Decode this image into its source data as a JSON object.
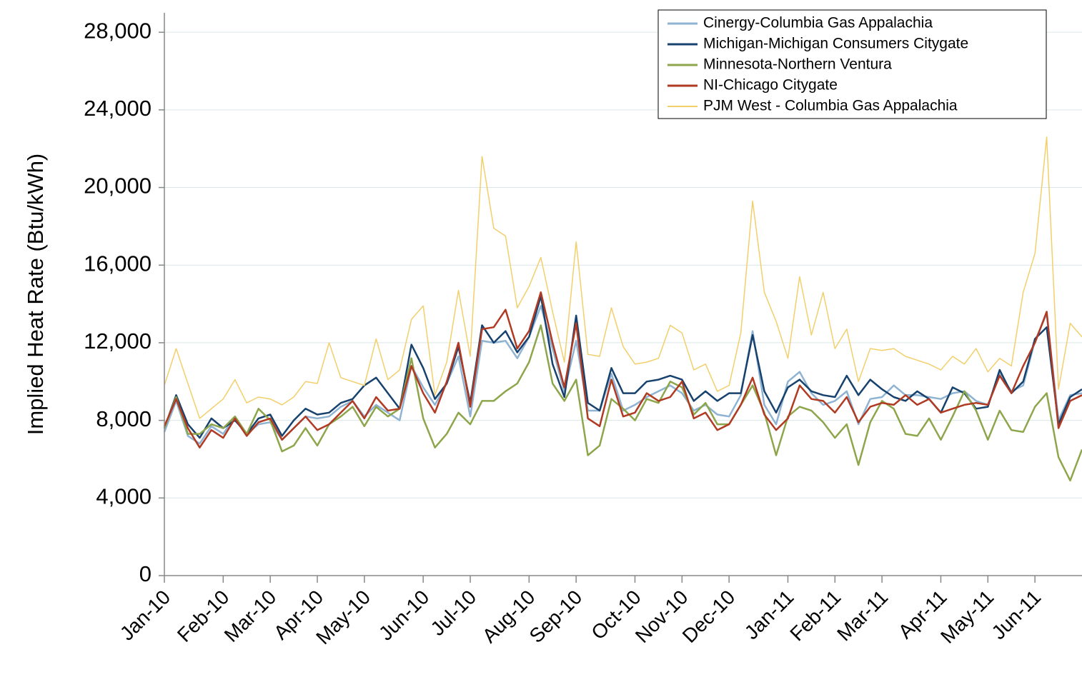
{
  "chart_data": {
    "type": "line",
    "y_label": "Implied Heat Rate (Btu/kWh)",
    "categories": [
      "Jan-10",
      null,
      null,
      null,
      null,
      "Feb-10",
      null,
      null,
      null,
      "Mar-10",
      null,
      null,
      null,
      "Apr-10",
      null,
      null,
      null,
      "May-10",
      null,
      null,
      null,
      null,
      "Jun-10",
      null,
      null,
      null,
      "Jul-10",
      null,
      null,
      null,
      null,
      "Aug-10",
      null,
      null,
      null,
      "Sep-10",
      null,
      null,
      null,
      null,
      "Oct-10",
      null,
      null,
      null,
      "Nov-10",
      null,
      null,
      null,
      "Dec-10",
      null,
      null,
      null,
      null,
      "Jan-11",
      null,
      null,
      null,
      "Feb-11",
      null,
      null,
      null,
      "Mar-11",
      null,
      null,
      null,
      null,
      "Apr-11",
      null,
      null,
      null,
      "May-11",
      null,
      null,
      null,
      "Jun-11",
      null,
      null,
      null,
      null
    ],
    "series": [
      {
        "name": "Cinergy-Columbia Gas Appalachia",
        "color": "#8fb3d3",
        "width": 2.5,
        "values": [
          7400,
          9000,
          7200,
          6800,
          7700,
          7300,
          8200,
          7300,
          7800,
          7900,
          7000,
          7600,
          8200,
          8100,
          8200,
          8700,
          9000,
          8200,
          8800,
          8400,
          8000,
          10800,
          9700,
          8800,
          9900,
          11300,
          8200,
          12100,
          12000,
          12100,
          11200,
          12300,
          13900,
          11700,
          9500,
          12100,
          8500,
          8500,
          10400,
          8500,
          8800,
          9200,
          9500,
          9800,
          9400,
          8500,
          8800,
          8300,
          8200,
          9300,
          12600,
          8800,
          7800,
          10000,
          10500,
          9400,
          8800,
          9000,
          9500,
          7800,
          9100,
          9200,
          9800,
          9300,
          9300,
          9200,
          9100,
          9400,
          9500,
          9000,
          8800,
          10400,
          9500,
          9800,
          12100,
          13500,
          8000,
          9300,
          9400
        ]
      },
      {
        "name": "Michigan-Michigan Consumers Citygate",
        "color": "#17426e",
        "width": 2.5,
        "values": [
          7600,
          9300,
          7800,
          7100,
          8100,
          7600,
          8000,
          7300,
          8100,
          8300,
          7200,
          8000,
          8600,
          8300,
          8400,
          8900,
          9100,
          9800,
          10200,
          9400,
          8600,
          11900,
          10700,
          9100,
          9900,
          11800,
          8900,
          12900,
          12000,
          12600,
          11500,
          12300,
          14400,
          10900,
          9200,
          13400,
          8900,
          8500,
          10700,
          9400,
          9400,
          10000,
          10100,
          10300,
          10100,
          9000,
          9500,
          9000,
          9400,
          9400,
          12400,
          9500,
          8400,
          9700,
          10100,
          9500,
          9300,
          9200,
          10300,
          9300,
          10100,
          9600,
          9200,
          9000,
          9500,
          9100,
          8400,
          9700,
          9400,
          8600,
          8700,
          10600,
          9400,
          10000,
          12200,
          12800,
          7800,
          9200,
          9600
        ]
      },
      {
        "name": "Minnesota-Northern Ventura",
        "color": "#8ea64b",
        "width": 2.5,
        "values": [
          7600,
          9200,
          7300,
          7300,
          7800,
          7600,
          8200,
          7300,
          8600,
          8000,
          6400,
          6700,
          7600,
          6700,
          7800,
          8200,
          8700,
          7700,
          8700,
          8200,
          8600,
          11200,
          8100,
          6600,
          7300,
          8400,
          7800,
          9000,
          9000,
          9500,
          9900,
          11000,
          12900,
          9900,
          9000,
          10100,
          6200,
          6700,
          9100,
          8600,
          8000,
          9100,
          8900,
          10000,
          9700,
          8300,
          8900,
          7800,
          7800,
          8800,
          9800,
          8400,
          6200,
          8200,
          8700,
          8500,
          7900,
          7100,
          7800,
          5700,
          7900,
          9000,
          8600,
          7300,
          7200,
          8100,
          7000,
          8200,
          9500,
          8500,
          7000,
          8500,
          7500,
          7400,
          8700,
          9400,
          6100,
          4900,
          6500
        ]
      },
      {
        "name": "NI-Chicago Citygate",
        "color": "#b03a22",
        "width": 2.5,
        "values": [
          7700,
          9100,
          7600,
          6600,
          7500,
          7100,
          8100,
          7200,
          7900,
          8100,
          7000,
          7600,
          8200,
          7500,
          7800,
          8400,
          9000,
          8100,
          9200,
          8500,
          8600,
          10800,
          9400,
          8400,
          10000,
          12000,
          8700,
          12700,
          12800,
          13700,
          11700,
          12600,
          14600,
          12000,
          9700,
          13000,
          8100,
          7700,
          10100,
          8200,
          8400,
          9400,
          9000,
          9200,
          10000,
          8100,
          8400,
          7500,
          7800,
          8800,
          10200,
          8300,
          7500,
          8100,
          9800,
          9100,
          9000,
          8400,
          9200,
          7900,
          8700,
          8900,
          8800,
          9300,
          8800,
          9100,
          8400,
          8600,
          8800,
          8900,
          8800,
          10300,
          9400,
          10800,
          12000,
          13600,
          7600,
          9000,
          9300
        ]
      },
      {
        "name": "PJM West - Columbia Gas Appalachia",
        "color": "#f2cf6b",
        "width": 1.5,
        "values": [
          9800,
          11700,
          9900,
          8100,
          8600,
          9100,
          10100,
          8900,
          9200,
          9100,
          8800,
          9200,
          10000,
          9900,
          12000,
          10200,
          10000,
          9800,
          12200,
          10100,
          10600,
          13200,
          13900,
          9300,
          11000,
          14700,
          11300,
          21600,
          17900,
          17500,
          13800,
          14900,
          16400,
          13600,
          11000,
          17200,
          11400,
          11300,
          13800,
          11800,
          10900,
          11000,
          11200,
          12900,
          12500,
          10600,
          10900,
          9500,
          9800,
          12500,
          19300,
          14600,
          13100,
          11200,
          15400,
          12400,
          14600,
          11700,
          12700,
          10000,
          11700,
          11600,
          11700,
          11300,
          11100,
          10900,
          10600,
          11300,
          10900,
          11700,
          10500,
          11200,
          10800,
          14600,
          16600,
          22600,
          9600,
          13000,
          12300
        ]
      }
    ],
    "ylim": [
      0,
      29000
    ],
    "yticks": [
      0,
      {
        "value": 4000,
        "label": "4,000"
      },
      {
        "value": 8000,
        "label": "8,000"
      },
      {
        "value": 12000,
        "label": "12,000"
      },
      {
        "value": 16000,
        "label": "16,000"
      },
      {
        "value": 20000,
        "label": "20,000"
      },
      {
        "value": 24000,
        "label": "24,000"
      },
      {
        "value": 28000,
        "label": "28,000"
      }
    ],
    "grid": true,
    "legend": "top-right"
  }
}
